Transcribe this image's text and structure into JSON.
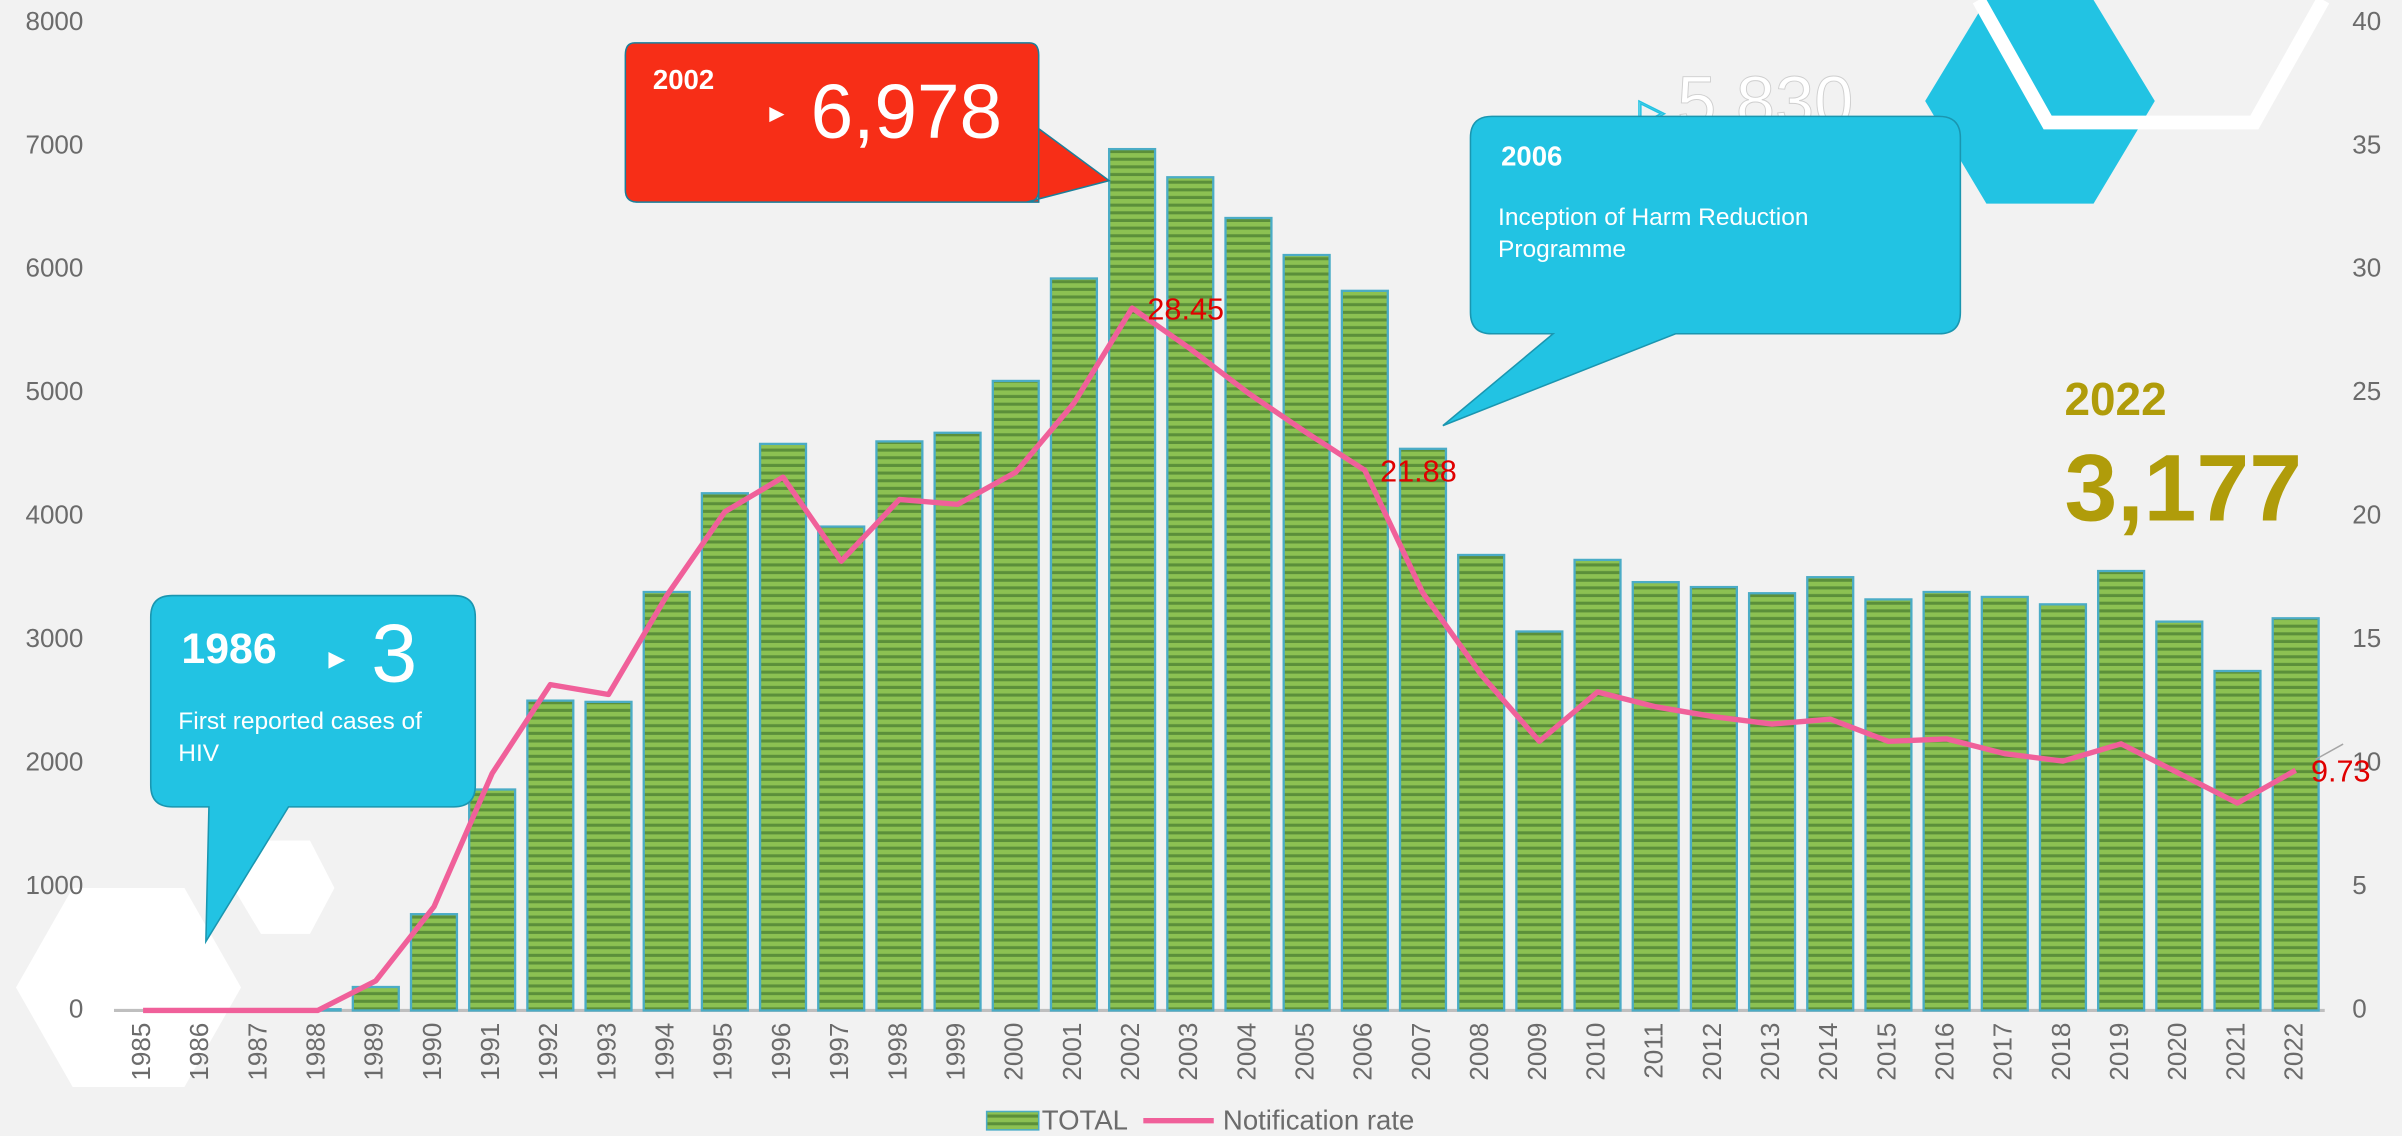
{
  "chart_data": {
    "type": "bar_line",
    "categories": [
      "1985",
      "1986",
      "1987",
      "1988",
      "1989",
      "1990",
      "1991",
      "1992",
      "1993",
      "1994",
      "1995",
      "1996",
      "1997",
      "1998",
      "1999",
      "2000",
      "2001",
      "2002",
      "2003",
      "2004",
      "2005",
      "2006",
      "2007",
      "2008",
      "2009",
      "2010",
      "2011",
      "2012",
      "2013",
      "2014",
      "2015",
      "2016",
      "2017",
      "2018",
      "2019",
      "2020",
      "2021",
      "2022"
    ],
    "series": [
      {
        "name": "TOTAL",
        "type": "bar",
        "axis": "y",
        "color": "#8cc152",
        "stroke": "#4bacc6",
        "values": [
          0,
          3,
          5,
          10,
          190,
          780,
          1790,
          2510,
          2500,
          3390,
          4190,
          4590,
          3920,
          4610,
          4680,
          5100,
          5930,
          6978,
          6750,
          6420,
          6120,
          5830,
          4550,
          3690,
          3070,
          3650,
          3470,
          3430,
          3380,
          3510,
          3330,
          3390,
          3350,
          3290,
          3560,
          3150,
          2750,
          3177
        ]
      },
      {
        "name": "Notification rate",
        "type": "line",
        "axis": "y2",
        "color": "#f0609a",
        "values": [
          0,
          0,
          0,
          0,
          1.2,
          4.2,
          9.6,
          13.2,
          12.8,
          16.8,
          20.2,
          21.6,
          18.2,
          20.7,
          20.5,
          21.8,
          24.6,
          28.45,
          26.8,
          25.0,
          23.4,
          21.88,
          16.9,
          13.6,
          10.9,
          12.9,
          12.3,
          11.9,
          11.6,
          11.8,
          10.9,
          11.0,
          10.4,
          10.1,
          10.8,
          9.6,
          8.4,
          9.73
        ],
        "value_labels": [
          null,
          null,
          null,
          null,
          null,
          null,
          null,
          null,
          null,
          null,
          null,
          null,
          null,
          null,
          null,
          null,
          null,
          "28.45",
          null,
          null,
          null,
          "21.88",
          null,
          null,
          null,
          null,
          null,
          null,
          null,
          null,
          null,
          null,
          null,
          null,
          null,
          null,
          null,
          "9.73"
        ],
        "label_color": "#e00000"
      }
    ],
    "ylim": [
      0,
      8000
    ],
    "yticks": [
      0,
      1000,
      2000,
      3000,
      4000,
      5000,
      6000,
      7000,
      8000
    ],
    "y2lim": [
      0,
      40
    ],
    "y2ticks": [
      0,
      5,
      10,
      15,
      20,
      25,
      30,
      35,
      40
    ],
    "grid": false,
    "legend": "bottom",
    "annotations": [
      {
        "year": "2002",
        "value": "6,978"
      },
      {
        "year": "2006",
        "value": "5,830",
        "text": "Inception of Harm Reduction Programme"
      },
      {
        "year": "1986",
        "value": "3",
        "text": "First reported cases of HIV"
      },
      {
        "year": "2022",
        "value": "3,177"
      }
    ]
  }
}
